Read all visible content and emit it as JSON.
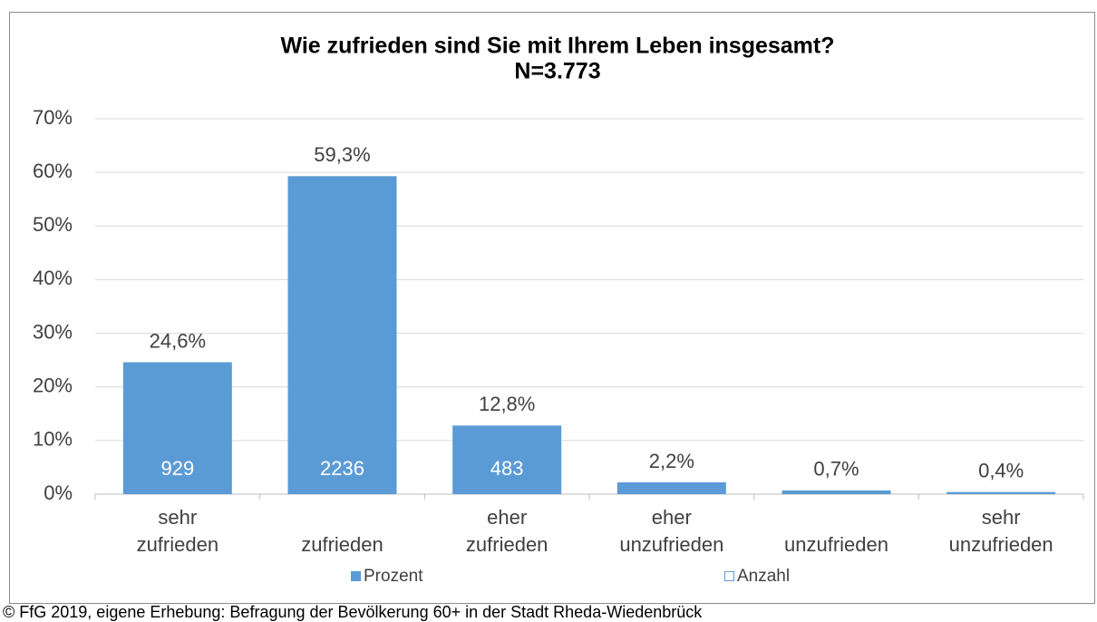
{
  "chart_data": {
    "type": "bar",
    "title": "Wie zufrieden sind Sie mit Ihrem Leben insgesamt?",
    "subtitle": "N=3.773",
    "categories": [
      "sehr zufrieden",
      "zufrieden",
      "eher zufrieden",
      "eher unzufrieden",
      "unzufrieden",
      "sehr unzufrieden"
    ],
    "series": [
      {
        "name": "Prozent",
        "color": "#5b9bd5",
        "values": [
          24.6,
          59.3,
          12.8,
          2.2,
          0.7,
          0.4
        ],
        "value_labels": [
          "24,6%",
          "59,3%",
          "12,8%",
          "2,2%",
          "0,7%",
          "0,4%"
        ]
      },
      {
        "name": "Anzahl",
        "color": "#5b9bd5",
        "values": [
          929,
          2236,
          483,
          null,
          null,
          null
        ]
      }
    ],
    "ylim": [
      0,
      70
    ],
    "yticks": [
      {
        "value": 0,
        "label": "0%"
      },
      {
        "value": 10,
        "label": "10%"
      },
      {
        "value": 20,
        "label": "20%"
      },
      {
        "value": 30,
        "label": "30%"
      },
      {
        "value": 40,
        "label": "40%"
      },
      {
        "value": 50,
        "label": "50%"
      },
      {
        "value": 60,
        "label": "60%"
      },
      {
        "value": 70,
        "label": "70%"
      }
    ],
    "grid": true,
    "legend": "bottom",
    "source": "© FfG 2019, eigene Erhebung: Befragung der Bevölkerung 60+ in der Stadt Rheda-Wiedenbrück"
  }
}
